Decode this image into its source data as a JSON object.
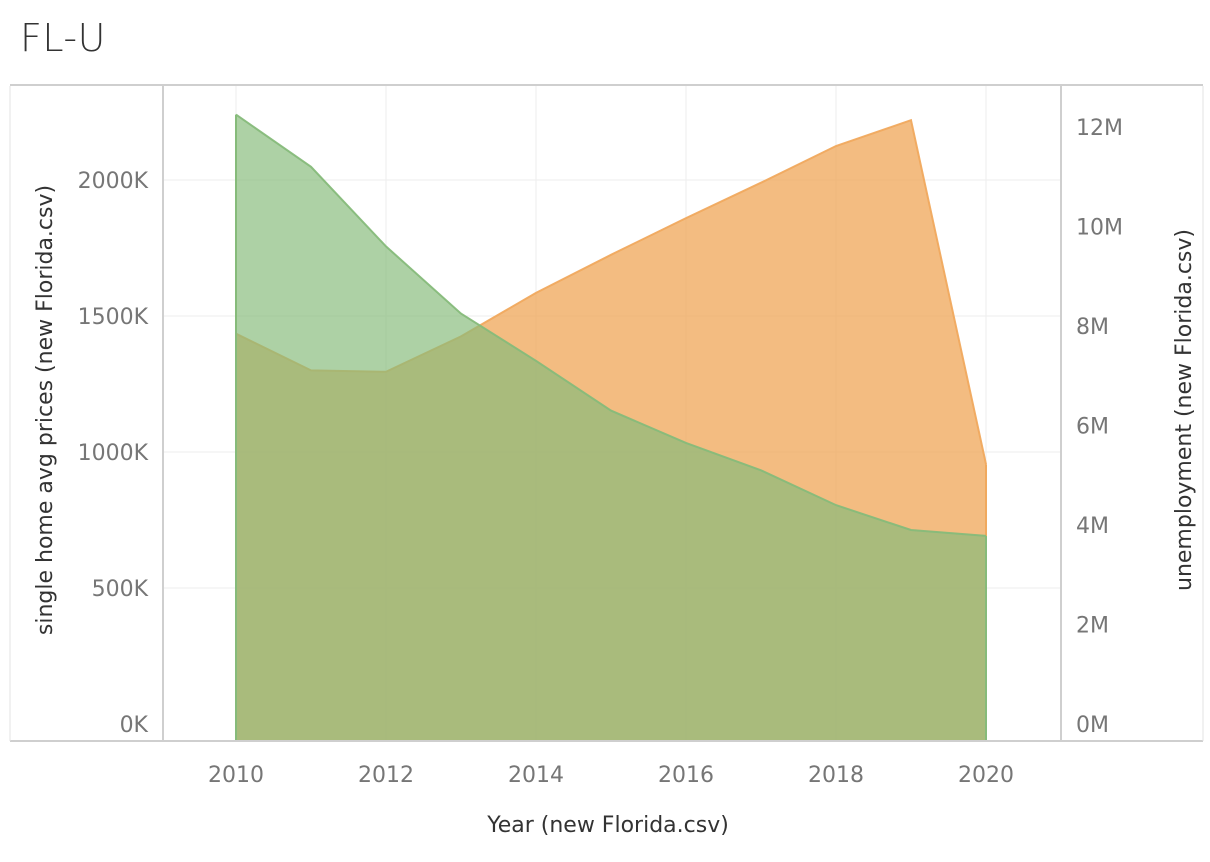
{
  "title": "FL-U",
  "chart_data": {
    "type": "area",
    "title": "FL-U",
    "xlabel": "Year (new Florida.csv)",
    "ylabel_left": "single home avg prices (new Florida.csv)",
    "ylabel_right": "unemployment (new Florida.csv)",
    "x": [
      2010,
      2011,
      2012,
      2013,
      2014,
      2015,
      2016,
      2017,
      2018,
      2019,
      2020
    ],
    "x_ticks": [
      2010,
      2012,
      2014,
      2016,
      2018,
      2020
    ],
    "x_tick_labels": [
      "2010",
      "2012",
      "2014",
      "2016",
      "2018",
      "2020"
    ],
    "xlim": [
      2009,
      2021
    ],
    "y_left_ticks": [
      0,
      500000,
      1000000,
      1500000,
      2000000
    ],
    "y_left_tick_labels": [
      "0K",
      "500K",
      "1000K",
      "1500K",
      "2000K"
    ],
    "y_left_lim": [
      0,
      2330000
    ],
    "y_right_ticks": [
      0,
      2000000,
      4000000,
      6000000,
      8000000,
      10000000,
      12000000
    ],
    "y_right_tick_labels": [
      "0M",
      "2M",
      "4M",
      "6M",
      "8M",
      "10M",
      "12M"
    ],
    "y_right_lim": [
      0,
      12850000
    ],
    "grid": true,
    "series": [
      {
        "axis": "left",
        "color": "#f0a95e",
        "values": [
          1435000,
          1300000,
          1295000,
          1425000,
          1585000,
          1725000,
          1860000,
          1990000,
          2125000,
          2220000,
          955000
        ]
      },
      {
        "axis": "right",
        "color": "#86bb7a",
        "values": [
          12250000,
          11200000,
          9600000,
          8250000,
          7300000,
          6300000,
          5650000,
          5100000,
          4400000,
          3900000,
          3780000
        ]
      }
    ]
  }
}
